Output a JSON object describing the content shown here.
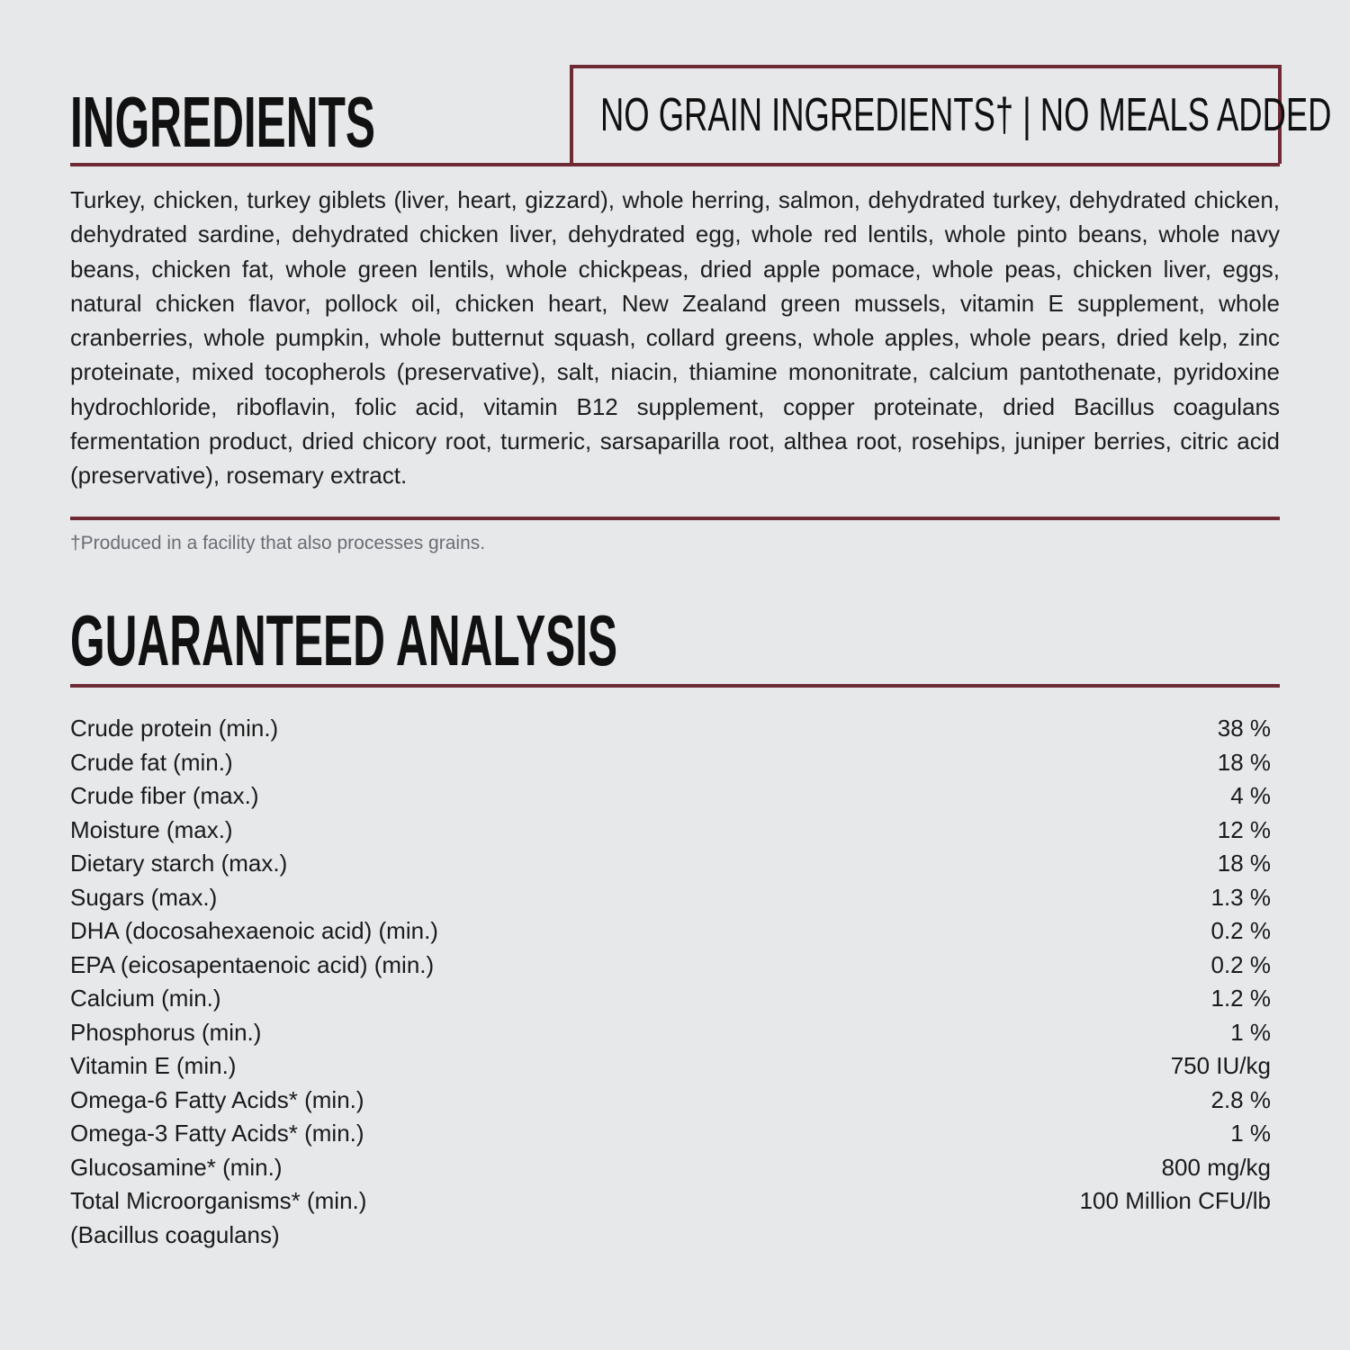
{
  "ingredients": {
    "title": "INGREDIENTS",
    "badge": "NO GRAIN INGREDIENTS† | NO MEALS ADDED",
    "text": "Turkey, chicken, turkey giblets (liver, heart, gizzard), whole herring, salmon, dehydrated turkey, dehydrated chicken, dehydrated sardine, dehydrated chicken liver, dehydrated egg, whole red lentils, whole pinto beans, whole navy beans, chicken fat, whole green lentils, whole chickpeas, dried apple pomace, whole peas, chicken liver, eggs, natural chicken flavor, pollock oil, chicken heart, New Zealand green mussels, vitamin E supplement, whole cranberries, whole pumpkin, whole butternut squash, collard greens, whole apples, whole pears, dried kelp, zinc proteinate, mixed tocopherols (preservative), salt, niacin, thiamine mononitrate, calcium pantothenate, pyridoxine hydrochloride, riboflavin, folic acid, vitamin B12 supplement, copper proteinate, dried Bacillus coagulans fermentation product, dried chicory root, turmeric, sarsaparilla root, althea root, rosehips, juniper berries, citric acid (preservative), rosemary extract.",
    "footnote": "†Produced in a facility that also processes grains."
  },
  "analysis": {
    "title": "GUARANTEED ANALYSIS",
    "rows": [
      {
        "label": "Crude protein (min.)",
        "value": "38 %"
      },
      {
        "label": "Crude fat (min.)",
        "value": "18 %"
      },
      {
        "label": "Crude fiber (max.)",
        "value": "4 %"
      },
      {
        "label": "Moisture (max.)",
        "value": "12 %"
      },
      {
        "label": "Dietary starch (max.)",
        "value": "18 %"
      },
      {
        "label": "Sugars (max.)",
        "value": "1.3 %"
      },
      {
        "label": "DHA (docosahexaenoic acid) (min.)",
        "value": "0.2 %"
      },
      {
        "label": "EPA (eicosapentaenoic acid) (min.)",
        "value": "0.2 %"
      },
      {
        "label": "Calcium (min.)",
        "value": "1.2 %"
      },
      {
        "label": "Phosphorus (min.)",
        "value": "1 %"
      },
      {
        "label": "Vitamin E (min.)",
        "value": "750 IU/kg"
      },
      {
        "label": "Omega-6 Fatty Acids* (min.)",
        "value": "2.8 %"
      },
      {
        "label": "Omega-3 Fatty Acids* (min.)",
        "value": "1 %"
      },
      {
        "label": "Glucosamine* (min.)",
        "value": "800 mg/kg"
      },
      {
        "label": "Total Microorganisms* (min.)",
        "value": "100 Million CFU/lb"
      },
      {
        "label": "(Bacillus coagulans)",
        "value": ""
      }
    ]
  },
  "colors": {
    "accent": "#6e2a35",
    "background": "#e7e8ea"
  }
}
